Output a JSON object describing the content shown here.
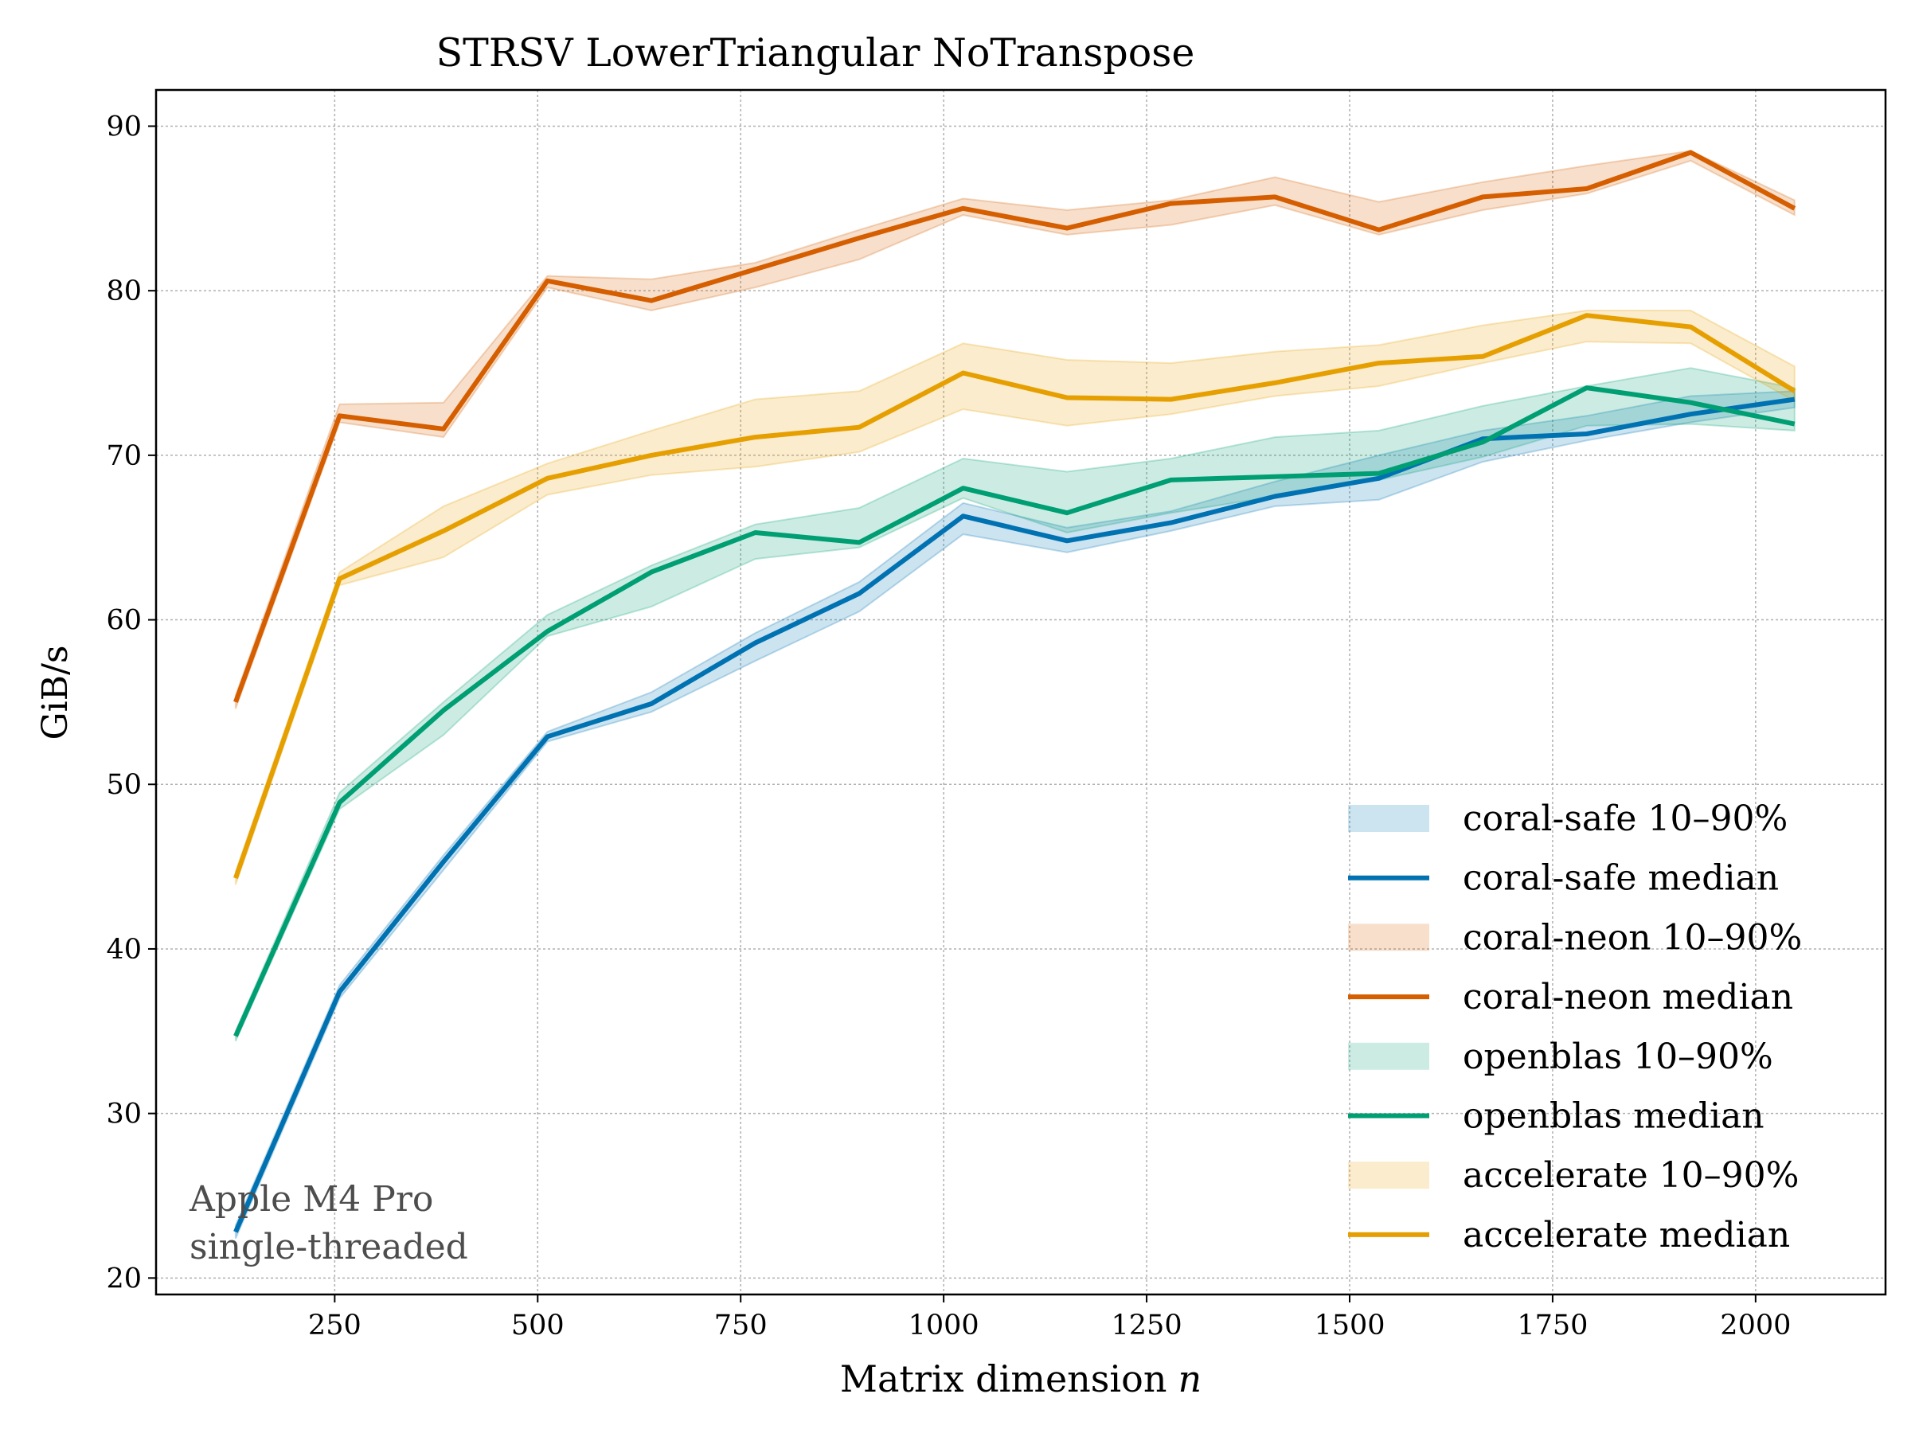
{
  "chart_data": {
    "type": "line",
    "title": "STRSV  LowerTriangular  NoTranspose",
    "xlabel": "Matrix dimension",
    "xlabel_var": "n",
    "ylabel": "GiB/s",
    "xlim": [
      30,
      2160
    ],
    "ylim": [
      19,
      92.2
    ],
    "xticks": [
      250,
      500,
      750,
      1000,
      1250,
      1500,
      1750,
      2000
    ],
    "yticks": [
      20,
      30,
      40,
      50,
      60,
      70,
      80,
      90
    ],
    "grid": true,
    "x": [
      128,
      256,
      384,
      512,
      640,
      768,
      896,
      1024,
      1152,
      1280,
      1408,
      1536,
      1664,
      1792,
      1920,
      2048
    ],
    "series": [
      {
        "name": "coral-safe",
        "color": "#0072b2",
        "median": [
          22.8,
          37.4,
          45.3,
          52.9,
          54.9,
          58.6,
          61.6,
          66.3,
          64.8,
          65.9,
          67.5,
          68.6,
          71.0,
          71.3,
          72.5,
          73.4
        ],
        "p10": [
          22.4,
          37.0,
          44.8,
          52.6,
          54.4,
          57.5,
          60.5,
          65.2,
          64.1,
          65.4,
          66.9,
          67.3,
          69.6,
          70.9,
          72.0,
          72.9
        ],
        "p90": [
          23.2,
          37.8,
          45.7,
          53.2,
          55.6,
          59.2,
          62.3,
          67.1,
          65.6,
          66.6,
          68.4,
          70.0,
          71.5,
          72.4,
          73.6,
          73.9
        ]
      },
      {
        "name": "coral-neon",
        "color": "#d55e00",
        "median": [
          55.0,
          72.4,
          71.6,
          80.6,
          79.4,
          81.3,
          83.2,
          85.0,
          83.8,
          85.3,
          85.7,
          83.7,
          85.7,
          86.2,
          88.4,
          85.0
        ],
        "p10": [
          54.6,
          72.0,
          71.1,
          80.2,
          78.8,
          80.2,
          81.9,
          84.6,
          83.4,
          84.0,
          85.2,
          83.4,
          84.9,
          85.9,
          87.9,
          84.6
        ],
        "p90": [
          55.4,
          73.1,
          73.2,
          80.9,
          80.7,
          81.7,
          83.7,
          85.6,
          84.9,
          85.5,
          86.9,
          85.4,
          86.6,
          87.6,
          88.5,
          85.5
        ]
      },
      {
        "name": "openblas",
        "color": "#009e73",
        "median": [
          34.7,
          48.9,
          54.5,
          59.3,
          62.9,
          65.3,
          64.7,
          68.0,
          66.5,
          68.5,
          68.7,
          68.9,
          70.8,
          74.1,
          73.2,
          71.9
        ],
        "p10": [
          34.4,
          48.5,
          53.0,
          59.0,
          60.8,
          63.7,
          64.4,
          67.4,
          65.3,
          66.5,
          67.5,
          68.5,
          69.9,
          71.8,
          71.9,
          71.5
        ],
        "p90": [
          35.0,
          49.5,
          55.0,
          60.3,
          63.3,
          65.8,
          66.8,
          69.8,
          69.0,
          69.8,
          71.1,
          71.5,
          73.0,
          74.2,
          75.3,
          74.1
        ]
      },
      {
        "name": "accelerate",
        "color": "#e69f00",
        "median": [
          44.3,
          62.5,
          65.4,
          68.6,
          70.0,
          71.1,
          71.7,
          75.0,
          73.5,
          73.4,
          74.4,
          75.6,
          76.0,
          78.5,
          77.8,
          73.9
        ],
        "p10": [
          43.9,
          62.1,
          63.8,
          67.6,
          68.8,
          69.3,
          70.2,
          72.8,
          71.8,
          72.5,
          73.6,
          74.2,
          75.6,
          76.9,
          76.8,
          73.3
        ],
        "p90": [
          44.7,
          62.9,
          66.9,
          69.5,
          71.5,
          73.4,
          73.9,
          76.8,
          75.8,
          75.6,
          76.3,
          76.7,
          77.9,
          78.8,
          78.8,
          75.4
        ]
      }
    ],
    "legend": {
      "placement": "lower-right",
      "entries": [
        {
          "label": "coral-safe 10–90%",
          "kind": "band",
          "color": "#0072b2"
        },
        {
          "label": "coral-safe median",
          "kind": "line",
          "color": "#0072b2"
        },
        {
          "label": "coral-neon 10–90%",
          "kind": "band",
          "color": "#d55e00"
        },
        {
          "label": "coral-neon median",
          "kind": "line",
          "color": "#d55e00"
        },
        {
          "label": "openblas 10–90%",
          "kind": "band",
          "color": "#009e73"
        },
        {
          "label": "openblas median",
          "kind": "line",
          "color": "#009e73"
        },
        {
          "label": "accelerate 10–90%",
          "kind": "band",
          "color": "#e69f00"
        },
        {
          "label": "accelerate median",
          "kind": "line",
          "color": "#e69f00"
        }
      ]
    },
    "annotations": [
      "Apple M4 Pro",
      "single-threaded"
    ]
  }
}
